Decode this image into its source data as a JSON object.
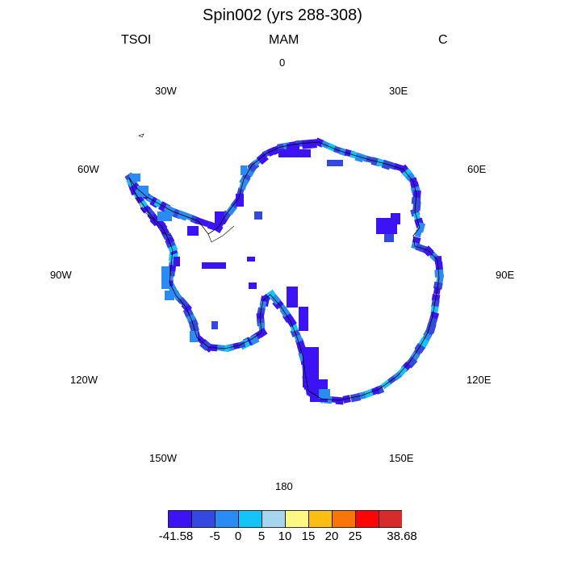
{
  "title": "Spin002 (yrs 288-308)",
  "left_label": "TSOI",
  "center_label": "MAM",
  "right_label": "C",
  "longitude_labels": {
    "top": "0",
    "e30": "30E",
    "e60": "60E",
    "e90": "90E",
    "e120": "120E",
    "e150": "150E",
    "bottom": "180",
    "w150": "150W",
    "w120": "120W",
    "w90": "90W",
    "w60": "60W",
    "w30": "30W"
  },
  "colorbar": {
    "colors": [
      "#3c13f5",
      "#3349e0",
      "#2a8cf2",
      "#14c3f7",
      "#a6d5f0",
      "#fdf783",
      "#fbbe13",
      "#fa7508",
      "#fb0505",
      "#d72a2a"
    ],
    "labels": [
      "-41.58",
      "-5",
      "0",
      "5",
      "10",
      "15",
      "20",
      "25",
      "38.68"
    ]
  },
  "map": {
    "projection": "south polar stereographic",
    "coastline_color": "#000000",
    "data_colors_present": [
      "#3c13f5",
      "#3349e0",
      "#2a8cf2",
      "#14c3f7"
    ]
  }
}
